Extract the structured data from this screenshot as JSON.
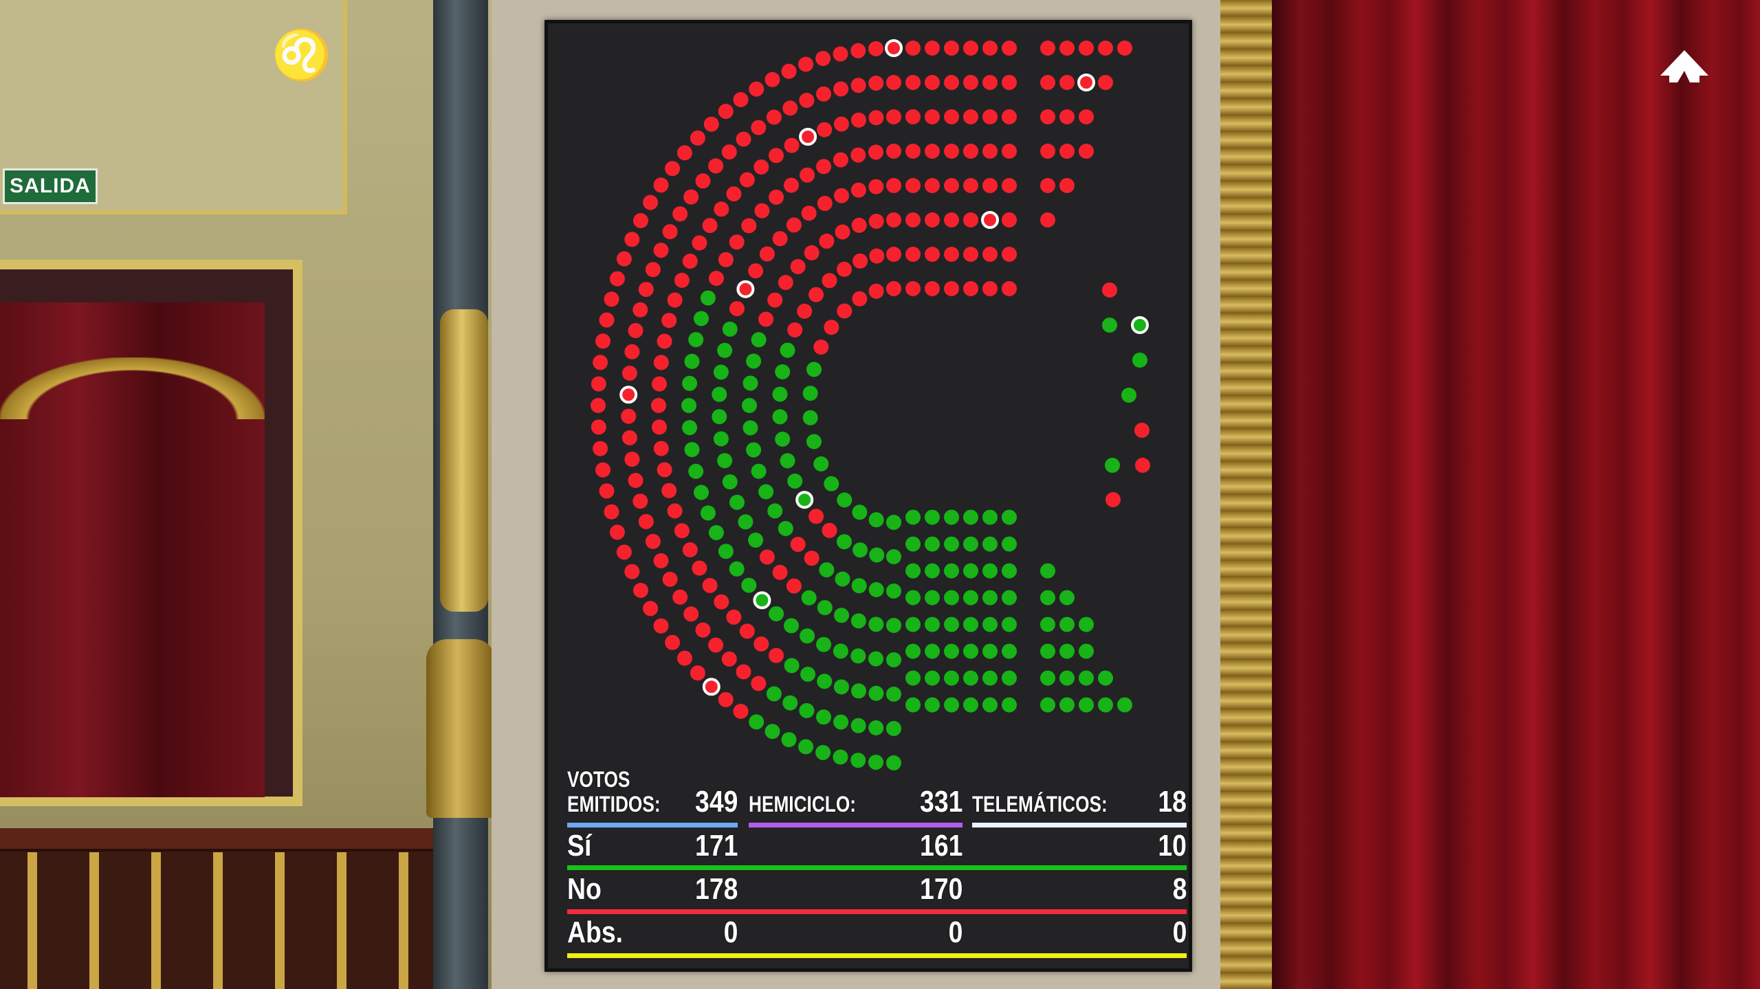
{
  "scene": {
    "exit_sign": "SALIDA",
    "logo_icon": "congreso-logo-icon"
  },
  "seat_colors": {
    "si": "#17b317",
    "no": "#f5222d",
    "highlight_ring": "#ffffff"
  },
  "telematic_column_colors": [
    "no",
    "si",
    "si",
    "si",
    "si",
    "no",
    "si",
    "no",
    "no"
  ],
  "scoreboard": {
    "emitidos_label_line1": "VOTOS",
    "emitidos_label_line2": "EMITIDOS:",
    "emitidos_value": "349",
    "hemiciclo_label": "HEMICICLO:",
    "hemiciclo_value": "331",
    "telematicos_label": "TELEMÁTICOS:",
    "telematicos_value": "18",
    "rows": [
      {
        "label": "Sí",
        "total": "171",
        "hemiciclo": "161",
        "telematicos": "10",
        "color": "#19c21a"
      },
      {
        "label": "No",
        "total": "178",
        "hemiciclo": "170",
        "telematicos": "8",
        "color": "#f52a3a"
      },
      {
        "label": "Abs.",
        "total": "0",
        "hemiciclo": "0",
        "telematicos": "0",
        "color": "#f0f014"
      }
    ],
    "header_line_colors": {
      "emitidos": "#6fa8f0",
      "hemiciclo": "#b45cf0",
      "telematicos": "#e8f4ff"
    }
  }
}
